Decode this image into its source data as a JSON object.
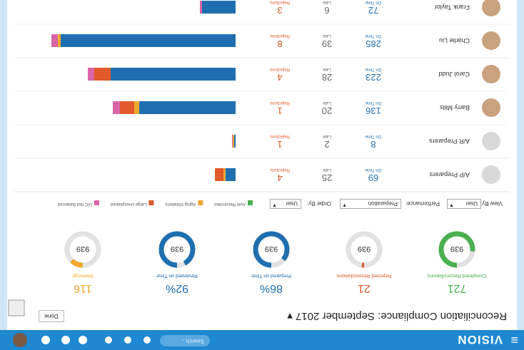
{
  "app": {
    "brand": "VISION",
    "search": "Search..."
  },
  "header": {
    "title": "Reconciliation Compliance: September 2017",
    "done": "Done"
  },
  "kpis": [
    {
      "value": 721,
      "label": "Completed Reconciliations",
      "total": 939,
      "color": "#4caf50"
    },
    {
      "value": 21,
      "label": "Rejected Reconciliations",
      "total": 939,
      "color": "#e05a2b"
    },
    {
      "value": 86,
      "value_label": "86%",
      "label": "Prepared on Time",
      "total": 939,
      "color": "#1f6fb0"
    },
    {
      "value": 92,
      "value_label": "92%",
      "label": "Reviewed on Time",
      "total": 939,
      "color": "#1f6fb0"
    },
    {
      "value": 116,
      "label": "Warnings",
      "total": 939,
      "color": "#f0a830"
    }
  ],
  "filters": [
    {
      "label": "View By:",
      "value": "User"
    },
    {
      "label": "Performance:",
      "value": "Preparation"
    },
    {
      "label": "Order By:",
      "value": "User"
    }
  ],
  "legend": [
    {
      "name": "Auto Reconciled",
      "color": "#4caf50"
    },
    {
      "name": "Aging Violations",
      "color": "#f0a830"
    },
    {
      "name": "Large Unexplained",
      "color": "#e05a2b"
    },
    {
      "name": "U/C Not Balanced",
      "color": "#d965a8"
    }
  ],
  "columns": [
    "On Time",
    "Late",
    "Rejections"
  ],
  "bar_colors": [
    "#1f6fb0",
    "#f0a830",
    "#e05a2b",
    "#d965a8"
  ],
  "rows": [
    {
      "name": "A/P Preparers",
      "on_time": 69,
      "late": 25,
      "rejections": 4,
      "bar": [
        14,
        3,
        12,
        null
      ]
    },
    {
      "name": "A/R Preparers",
      "on_time": 8,
      "late": 2,
      "rejections": 1,
      "bar": [
        2,
        2,
        null,
        1
      ]
    },
    {
      "name": "Barry Mills",
      "on_time": 136,
      "late": 20,
      "rejections": 1,
      "bar": [
        135,
        7,
        20,
        10
      ]
    },
    {
      "name": "Carol Judd",
      "on_time": 223,
      "late": 28,
      "rejections": 4,
      "bar": [
        175,
        null,
        23,
        9
      ]
    },
    {
      "name": "Charlie Liu",
      "on_time": 285,
      "late": 39,
      "rejections": 8,
      "bar": [
        245,
        4,
        null,
        9
      ]
    },
    {
      "name": "Frank Taylor",
      "on_time": 72,
      "late": 6,
      "rejections": 3,
      "bar": [
        47,
        null,
        null,
        3
      ]
    }
  ]
}
